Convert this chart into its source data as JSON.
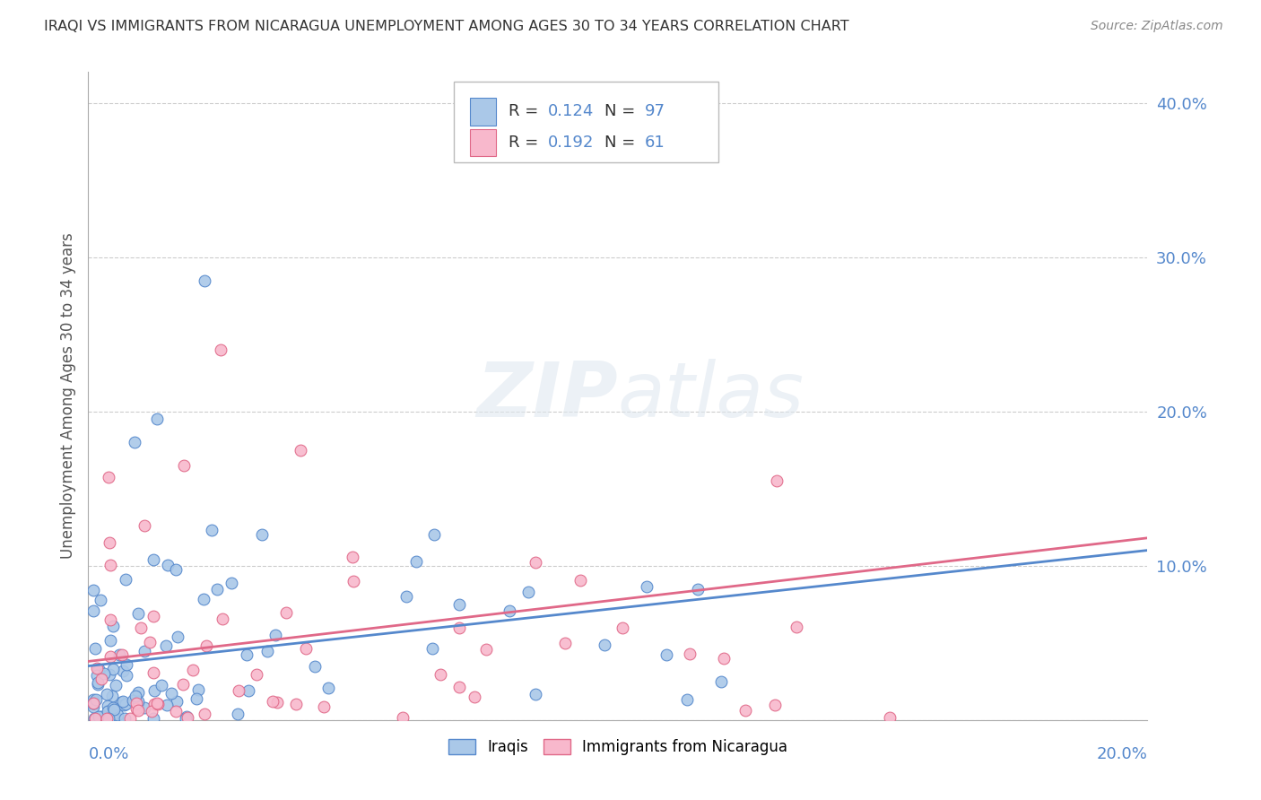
{
  "title": "IRAQI VS IMMIGRANTS FROM NICARAGUA UNEMPLOYMENT AMONG AGES 30 TO 34 YEARS CORRELATION CHART",
  "source": "Source: ZipAtlas.com",
  "ylabel": "Unemployment Among Ages 30 to 34 years",
  "x_min": 0.0,
  "x_max": 0.2,
  "y_min": 0.0,
  "y_max": 0.42,
  "background_color": "#ffffff",
  "grid_color": "#cccccc",
  "axis_label_color": "#5588cc",
  "title_color": "#333333",
  "source_color": "#888888",
  "watermark_color": "#dddddd",
  "series": [
    {
      "name": "Iraqis",
      "R": 0.124,
      "N": 97,
      "scatter_color": "#aac8e8",
      "edge_color": "#5588cc",
      "trend_color": "#5588cc",
      "trend_start_y": 0.035,
      "trend_end_y": 0.11
    },
    {
      "name": "Immigrants from Nicaragua",
      "R": 0.192,
      "N": 61,
      "scatter_color": "#f8b8cc",
      "edge_color": "#e06888",
      "trend_color": "#e06888",
      "trend_start_y": 0.038,
      "trend_end_y": 0.118
    }
  ],
  "legend": {
    "R_label_color": "#333333",
    "R_value_color": "#5588cc",
    "N_label_color": "#333333",
    "N_value_color": "#5588cc",
    "box_edge_color": "#bbbbbb",
    "box_face_color": "#ffffff"
  },
  "bottom_legend": {
    "iraqis_color": "#aac8e8",
    "iraqis_edge": "#5588cc",
    "nicaragua_color": "#f8b8cc",
    "nicaragua_edge": "#e06888"
  }
}
